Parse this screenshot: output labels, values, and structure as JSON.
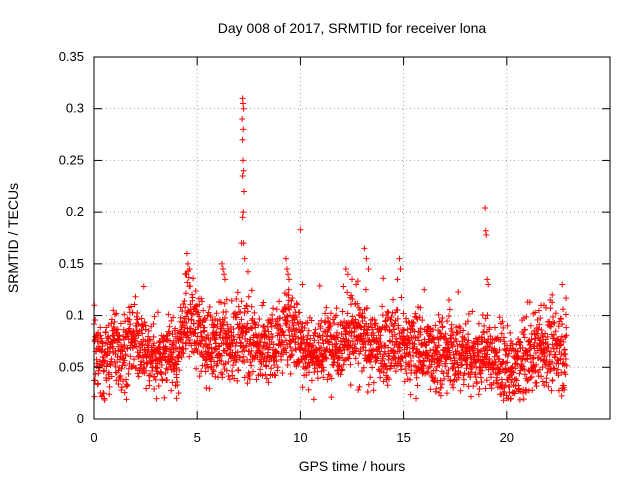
{
  "chart_data": {
    "type": "scatter",
    "title": "Day 008 of 2017, SRMTID for receiver lona",
    "xlabel": "GPS time / hours",
    "ylabel": "SRMTID / TECUs",
    "xlim": [
      0,
      25
    ],
    "ylim": [
      0,
      0.35
    ],
    "xticks": [
      "0",
      "5",
      "10",
      "15",
      "20"
    ],
    "yticks": [
      "0",
      "0.05",
      "0.1",
      "0.15",
      "0.2",
      "0.25",
      "0.3",
      "0.35"
    ],
    "grid": true,
    "marker": "+",
    "color": "#ff0000",
    "series": [
      {
        "name": "SRMTID",
        "x_start": 0.0,
        "x_end": 22.9,
        "baseline": [
          [
            0.0,
            0.065
          ],
          [
            0.3,
            0.055
          ],
          [
            0.5,
            0.05
          ],
          [
            1.0,
            0.07
          ],
          [
            1.5,
            0.065
          ],
          [
            2.0,
            0.075
          ],
          [
            2.5,
            0.065
          ],
          [
            3.0,
            0.06
          ],
          [
            3.5,
            0.065
          ],
          [
            4.0,
            0.06
          ],
          [
            4.5,
            0.1
          ],
          [
            5.0,
            0.085
          ],
          [
            5.5,
            0.065
          ],
          [
            6.0,
            0.075
          ],
          [
            6.5,
            0.07
          ],
          [
            7.0,
            0.075
          ],
          [
            7.5,
            0.08
          ],
          [
            8.0,
            0.07
          ],
          [
            8.5,
            0.065
          ],
          [
            9.0,
            0.08
          ],
          [
            9.5,
            0.09
          ],
          [
            10.0,
            0.075
          ],
          [
            10.5,
            0.065
          ],
          [
            11.0,
            0.065
          ],
          [
            11.5,
            0.075
          ],
          [
            12.0,
            0.075
          ],
          [
            12.5,
            0.085
          ],
          [
            13.0,
            0.075
          ],
          [
            13.5,
            0.07
          ],
          [
            14.0,
            0.07
          ],
          [
            14.5,
            0.075
          ],
          [
            15.0,
            0.065
          ],
          [
            15.5,
            0.07
          ],
          [
            16.0,
            0.065
          ],
          [
            16.5,
            0.065
          ],
          [
            17.0,
            0.065
          ],
          [
            17.5,
            0.06
          ],
          [
            18.0,
            0.065
          ],
          [
            18.5,
            0.06
          ],
          [
            19.0,
            0.065
          ],
          [
            19.5,
            0.055
          ],
          [
            20.0,
            0.045
          ],
          [
            20.5,
            0.05
          ],
          [
            21.0,
            0.06
          ],
          [
            21.5,
            0.065
          ],
          [
            22.0,
            0.065
          ],
          [
            22.5,
            0.065
          ],
          [
            22.9,
            0.07
          ]
        ],
        "spread": 0.018,
        "outliers": [
          [
            7.2,
            0.31
          ],
          [
            7.22,
            0.305
          ],
          [
            7.25,
            0.3
          ],
          [
            7.18,
            0.29
          ],
          [
            7.23,
            0.28
          ],
          [
            7.2,
            0.27
          ],
          [
            7.22,
            0.25
          ],
          [
            7.25,
            0.24
          ],
          [
            7.2,
            0.235
          ],
          [
            7.27,
            0.22
          ],
          [
            7.23,
            0.2
          ],
          [
            7.2,
            0.195
          ],
          [
            7.15,
            0.17
          ],
          [
            7.25,
            0.17
          ],
          [
            7.3,
            0.155
          ],
          [
            6.2,
            0.15
          ],
          [
            6.25,
            0.145
          ],
          [
            6.3,
            0.14
          ],
          [
            6.35,
            0.135
          ],
          [
            4.5,
            0.16
          ],
          [
            4.55,
            0.15
          ],
          [
            4.45,
            0.14
          ],
          [
            9.3,
            0.155
          ],
          [
            9.35,
            0.145
          ],
          [
            9.4,
            0.14
          ],
          [
            9.45,
            0.135
          ],
          [
            10.0,
            0.183
          ],
          [
            10.1,
            0.13
          ],
          [
            12.2,
            0.145
          ],
          [
            12.3,
            0.14
          ],
          [
            12.5,
            0.135
          ],
          [
            12.7,
            0.13
          ],
          [
            13.1,
            0.165
          ],
          [
            13.2,
            0.155
          ],
          [
            13.3,
            0.145
          ],
          [
            14.8,
            0.155
          ],
          [
            14.85,
            0.145
          ],
          [
            14.7,
            0.135
          ],
          [
            16.0,
            0.125
          ],
          [
            17.2,
            0.115
          ],
          [
            18.95,
            0.204
          ],
          [
            18.98,
            0.182
          ],
          [
            19.0,
            0.178
          ],
          [
            19.05,
            0.135
          ],
          [
            19.1,
            0.13
          ],
          [
            22.1,
            0.115
          ],
          [
            22.2,
            0.12
          ],
          [
            21.8,
            0.11
          ],
          [
            15.6,
            0.02
          ],
          [
            16.8,
            0.03
          ],
          [
            17.1,
            0.025
          ],
          [
            4.0,
            0.02
          ],
          [
            4.1,
            0.025
          ],
          [
            12.8,
            0.028
          ],
          [
            20.2,
            0.02
          ],
          [
            20.3,
            0.025
          ]
        ]
      }
    ]
  }
}
